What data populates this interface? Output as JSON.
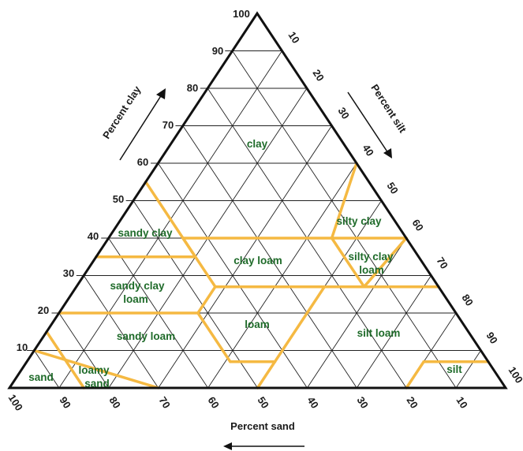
{
  "axes": {
    "clay": {
      "title": "Percent clay",
      "ticks": [
        "10",
        "20",
        "30",
        "40",
        "50",
        "60",
        "70",
        "80",
        "90",
        "100"
      ]
    },
    "silt": {
      "title": "Percent silt",
      "ticks": [
        "10",
        "20",
        "30",
        "40",
        "50",
        "60",
        "70",
        "80",
        "90",
        "100"
      ]
    },
    "sand": {
      "title": "Percent sand",
      "ticks": [
        "100",
        "90",
        "80",
        "70",
        "60",
        "50",
        "40",
        "30",
        "20",
        "10"
      ]
    }
  },
  "regions": {
    "clay": "clay",
    "silty_clay": "silty clay",
    "sandy_clay": "sandy clay",
    "clay_loam_a": "clay loam",
    "silty_clay_loam_1": "silty clay",
    "silty_clay_loam_2": "loam",
    "sandy_clay_loam_1": "sandy clay",
    "sandy_clay_loam_2": "loam",
    "loam": "loam",
    "silt_loam": "silt loam",
    "sandy_loam": "sandy loam",
    "loamy_sand_1": "loamy",
    "loamy_sand_2": "sand",
    "sand": "sand",
    "silt": "silt"
  },
  "colors": {
    "boundary": "#f5b942",
    "grid": "#222222",
    "outline": "#111111",
    "label": "#1f6b2a"
  }
}
